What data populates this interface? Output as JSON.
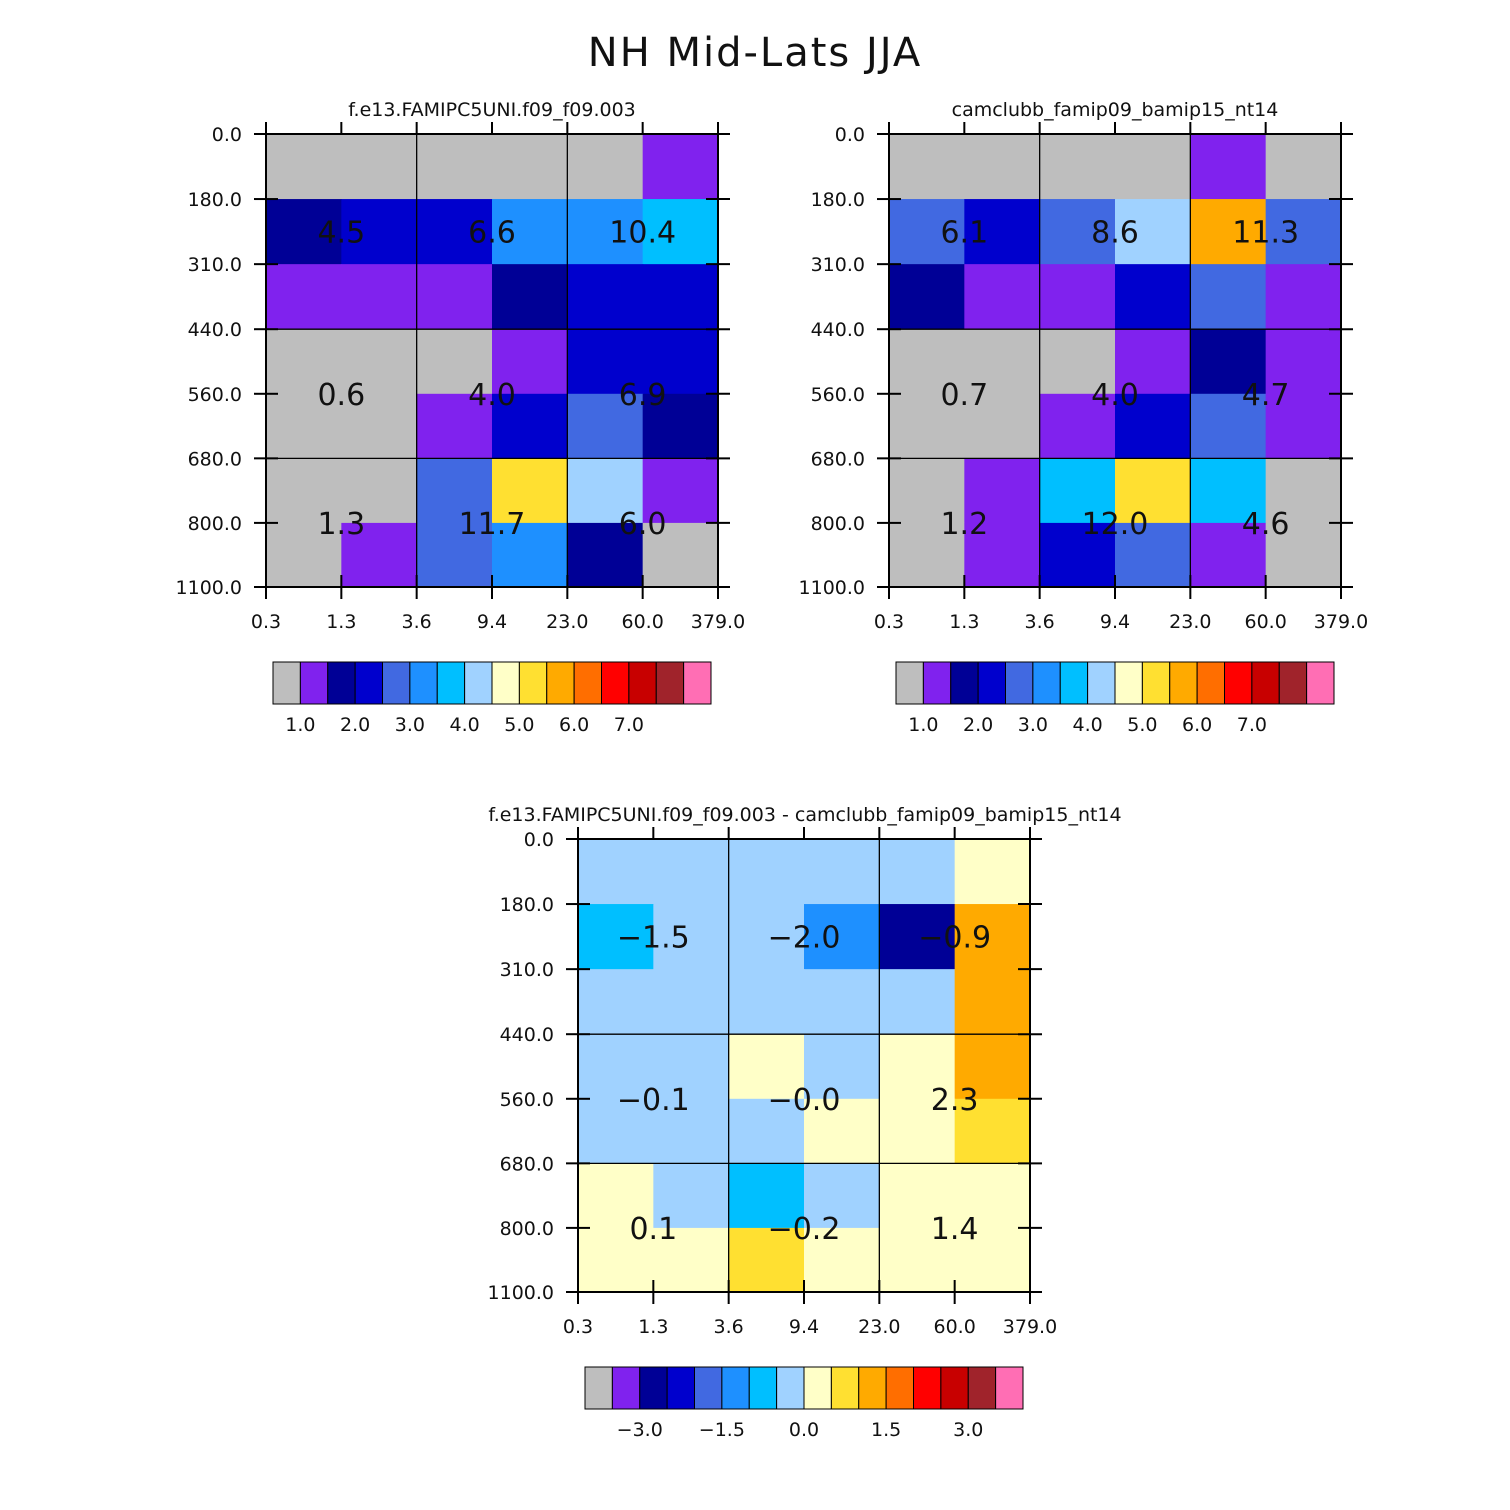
{
  "title": "NH Mid-Lats JJA",
  "palette": [
    "#bebebe",
    "#8022ee",
    "#000096",
    "#0000cd",
    "#4169e1",
    "#1e90ff",
    "#00bfff",
    "#a0d2ff",
    "#ffffc8",
    "#ffe031",
    "#ffaa00",
    "#ff6e00",
    "#ff0000",
    "#c80000",
    "#a0232b",
    "#ff6eb4"
  ],
  "chart_data": [
    {
      "type": "heatmap",
      "title": "f.e13.FAMIPC5UNI.f09_f09.003",
      "x_tick_labels": [
        "0.3",
        "1.3",
        "3.6",
        "9.4",
        "23.0",
        "60.0",
        "379.0"
      ],
      "y_tick_labels": [
        "0.0",
        "180.0",
        "310.0",
        "440.0",
        "560.0",
        "680.0",
        "800.0",
        "1100.0"
      ],
      "cell_color_index": [
        [
          0,
          0,
          0,
          0,
          0,
          1
        ],
        [
          2,
          3,
          3,
          5,
          5,
          6
        ],
        [
          1,
          1,
          1,
          2,
          3,
          3
        ],
        [
          0,
          0,
          0,
          1,
          3,
          3
        ],
        [
          0,
          0,
          1,
          3,
          4,
          2
        ],
        [
          0,
          0,
          4,
          9,
          7,
          1
        ],
        [
          0,
          1,
          4,
          5,
          2,
          0
        ]
      ],
      "group_values": [
        [
          "4.5",
          "6.6",
          "10.4"
        ],
        [
          "0.6",
          "4.0",
          "6.9"
        ],
        [
          "1.3",
          "11.7",
          "6.0"
        ]
      ],
      "colorbar_labels": [
        "1.0",
        "2.0",
        "3.0",
        "4.0",
        "5.0",
        "6.0",
        "7.0"
      ]
    },
    {
      "type": "heatmap",
      "title": "camclubb_famip09_bamip15_nt14",
      "x_tick_labels": [
        "0.3",
        "1.3",
        "3.6",
        "9.4",
        "23.0",
        "60.0",
        "379.0"
      ],
      "y_tick_labels": [
        "0.0",
        "180.0",
        "310.0",
        "440.0",
        "560.0",
        "680.0",
        "800.0",
        "1100.0"
      ],
      "cell_color_index": [
        [
          0,
          0,
          0,
          0,
          1,
          0
        ],
        [
          4,
          3,
          4,
          7,
          10,
          4
        ],
        [
          2,
          1,
          1,
          3,
          4,
          1
        ],
        [
          0,
          0,
          0,
          1,
          2,
          1
        ],
        [
          0,
          0,
          1,
          3,
          4,
          1
        ],
        [
          0,
          1,
          6,
          9,
          6,
          0
        ],
        [
          0,
          1,
          3,
          4,
          1,
          0
        ]
      ],
      "group_values": [
        [
          "6.1",
          "8.6",
          "11.3"
        ],
        [
          "0.7",
          "4.0",
          "4.7"
        ],
        [
          "1.2",
          "12.0",
          "4.6"
        ]
      ],
      "colorbar_labels": [
        "1.0",
        "2.0",
        "3.0",
        "4.0",
        "5.0",
        "6.0",
        "7.0"
      ]
    },
    {
      "type": "heatmap",
      "title": "f.e13.FAMIPC5UNI.f09_f09.003 - camclubb_famip09_bamip15_nt14",
      "x_tick_labels": [
        "0.3",
        "1.3",
        "3.6",
        "9.4",
        "23.0",
        "60.0",
        "379.0"
      ],
      "y_tick_labels": [
        "0.0",
        "180.0",
        "310.0",
        "440.0",
        "560.0",
        "680.0",
        "800.0",
        "1100.0"
      ],
      "cell_color_index": [
        [
          7,
          7,
          7,
          7,
          7,
          8
        ],
        [
          6,
          7,
          7,
          5,
          2,
          10
        ],
        [
          7,
          7,
          7,
          7,
          7,
          10
        ],
        [
          7,
          7,
          8,
          7,
          8,
          10
        ],
        [
          7,
          7,
          7,
          8,
          8,
          9
        ],
        [
          8,
          7,
          6,
          7,
          8,
          8
        ],
        [
          8,
          8,
          9,
          8,
          8,
          8
        ]
      ],
      "group_values": [
        [
          "-1.5",
          "-2.0",
          "-0.9"
        ],
        [
          "-0.1",
          "-0.0",
          "2.3"
        ],
        [
          "0.1",
          "-0.2",
          "1.4"
        ]
      ],
      "colorbar_labels": [
        "-3.0",
        "-1.5",
        "0.0",
        "1.5",
        "3.0"
      ]
    }
  ]
}
